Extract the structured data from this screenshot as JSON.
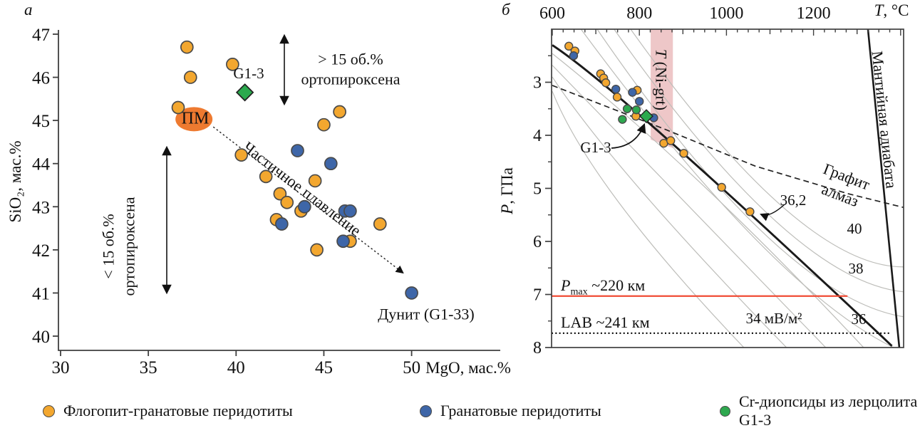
{
  "ui": {
    "panel_a_letter": "a",
    "panel_b_letter": "б",
    "axis_a": {
      "x_label": "MgO, мас.%",
      "y_label": "SiO₂, мас.%"
    },
    "axis_b": {
      "t_it": "T",
      "t_rest": ", °C",
      "p_it": "P",
      "p_rest": ", ГПа"
    },
    "legend": [
      {
        "label": "Флогопит-гранатовые перидотиты",
        "color": "#F3A72F"
      },
      {
        "label": "Гранатовые перидотиты",
        "color": "#3E66A8"
      },
      {
        "label": "Cr-диопсиды из лерцолита G1-3",
        "color": "#2EA84F"
      }
    ]
  },
  "chart_data": [
    {
      "id": "panel_a",
      "type": "scatter",
      "panel_label": "a",
      "xlabel": "MgO, мас.%",
      "ylabel": "SiO₂, мас.%",
      "xlim": [
        30,
        52.5
      ],
      "ylim": [
        40,
        47.15
      ],
      "x_ticks": [
        30,
        35,
        40,
        45,
        50
      ],
      "y_ticks": [
        47,
        46,
        45,
        44,
        43,
        42,
        41,
        40
      ],
      "series": [
        {
          "name": "Флогопит-гранатовые перидотиты",
          "marker": "circle",
          "color": "#F3A72F",
          "points": [
            [
              37.2,
              46.7
            ],
            [
              39.8,
              46.3
            ],
            [
              37.4,
              46.0
            ],
            [
              36.7,
              45.3
            ],
            [
              45.9,
              45.2
            ],
            [
              45.0,
              44.9
            ],
            [
              40.3,
              44.2
            ],
            [
              41.7,
              43.7
            ],
            [
              44.5,
              43.6
            ],
            [
              42.5,
              43.3
            ],
            [
              42.9,
              43.1
            ],
            [
              43.7,
              42.9
            ],
            [
              42.3,
              42.7
            ],
            [
              48.2,
              42.6
            ],
            [
              46.5,
              42.2
            ],
            [
              44.6,
              42.0
            ]
          ]
        },
        {
          "name": "Гранатовые перидотиты",
          "marker": "circle",
          "color": "#3E66A8",
          "points": [
            [
              43.5,
              44.3
            ],
            [
              45.4,
              44.0
            ],
            [
              43.9,
              43.0
            ],
            [
              46.2,
              42.9
            ],
            [
              46.5,
              42.9
            ],
            [
              42.6,
              42.6
            ],
            [
              46.1,
              42.2
            ],
            [
              50.0,
              41.0
            ]
          ]
        },
        {
          "name": "Лерцолит G1-3",
          "marker": "diamond",
          "color": "#2BAA4E",
          "points": [
            [
              40.5,
              45.65
            ]
          ]
        }
      ],
      "annotations": {
        "pm": {
          "text": "ПМ",
          "x": 37.6,
          "y": 45.03,
          "color": "#EE7A30"
        },
        "partial_melting": {
          "text": "Частичное плавление",
          "arrow_from": [
            38.7,
            44.85
          ],
          "arrow_to": [
            49.5,
            41.47
          ]
        },
        "gt15": {
          "line1": "> 15 об.%",
          "line2": "ортопироксена"
        },
        "lt15": {
          "line1": "< 15 об.%",
          "line2": "ортопироксена"
        },
        "g13": "G1-3",
        "dunite": "Дунит (G1-33)"
      }
    },
    {
      "id": "panel_b",
      "type": "scatter",
      "panel_label": "б",
      "xlabel": "T, °C",
      "ylabel": "P, ГПа",
      "xlim": [
        600,
        1407
      ],
      "ylim": [
        2,
        8
      ],
      "y_inverted": true,
      "x_ticks": [
        600,
        800,
        1000,
        1200
      ],
      "x_minor_step": 25,
      "y_ticks": [
        3,
        4,
        5,
        6,
        7,
        8
      ],
      "y_minor": [
        2.5,
        3.5,
        4.5,
        5.5,
        6.5,
        7.5
      ],
      "series": [
        {
          "name": "Флогопит-гранатовые перидотиты",
          "marker": "circle",
          "color": "#F3A72F",
          "points": [
            [
              638,
              2.32
            ],
            [
              652,
              2.41
            ],
            [
              711,
              2.84
            ],
            [
              718,
              2.92
            ],
            [
              723,
              3.01
            ],
            [
              749,
              3.28
            ],
            [
              795,
              3.15
            ],
            [
              792,
              3.64
            ],
            [
              856,
              4.15
            ],
            [
              872,
              4.1
            ],
            [
              902,
              4.34
            ],
            [
              989,
              4.98
            ],
            [
              1054,
              5.44
            ]
          ]
        },
        {
          "name": "Гранатовые перидотиты",
          "marker": "circle",
          "color": "#3E66A8",
          "points": [
            [
              649,
              2.5
            ],
            [
              746,
              3.13
            ],
            [
              784,
              3.19
            ],
            [
              800,
              3.36
            ],
            [
              833,
              3.67
            ]
          ]
        },
        {
          "name": "Cr-диопсиды из лерцолита G1-3",
          "marker": "circle",
          "color": "#2EA84F",
          "points": [
            [
              772,
              3.5
            ],
            [
              793,
              3.52
            ],
            [
              761,
              3.7
            ]
          ]
        },
        {
          "name": "Лерцолит G1-3",
          "marker": "diamond",
          "color": "#2BAA4E",
          "points": [
            [
              816,
              3.64
            ]
          ]
        }
      ],
      "geotherms": {
        "thick": {
          "label": "36,2",
          "points": [
            [
              600,
              2.3
            ],
            [
              872,
              4.13
            ],
            [
              1380,
              7.97
            ]
          ]
        },
        "thin": [
          {
            "label": "",
            "points": [
              [
                600,
                3.17
              ],
              [
                754,
                5.28
              ],
              [
                1040,
                8.0
              ]
            ]
          },
          {
            "label": "34 мВ/м²",
            "points": [
              [
                600,
                2.9
              ],
              [
                805,
                5.05
              ],
              [
                1138,
                8.0
              ]
            ]
          },
          {
            "label": "",
            "points": [
              [
                600,
                2.68
              ],
              [
                854,
                4.83
              ],
              [
                1228,
                8.0
              ]
            ]
          },
          {
            "label": "36",
            "points": [
              [
                600,
                2.46
              ],
              [
                942,
                4.91
              ],
              [
                1315,
                8.0
              ]
            ]
          },
          {
            "label": "",
            "points": [
              [
                666,
                2.0
              ],
              [
                1066,
                5.95
              ],
              [
                1384,
                8.0
              ]
            ]
          },
          {
            "label": "38",
            "points": [
              [
                703,
                2.0
              ],
              [
                1090,
                5.88
              ],
              [
                1407,
                7.42
              ]
            ]
          },
          {
            "label": "",
            "points": [
              [
                742,
                2.0
              ],
              [
                1112,
                5.61
              ],
              [
                1407,
                6.95
              ]
            ]
          },
          {
            "label": "40",
            "points": [
              [
                780,
                2.0
              ],
              [
                1132,
                5.37
              ],
              [
                1407,
                6.48
              ]
            ]
          }
        ]
      },
      "lines": {
        "graphite_diamond": {
          "label_top": "Графит",
          "label_bottom": "алмаз",
          "points": [
            [
              600,
              3.06
            ],
            [
              854,
              3.87
            ],
            [
              1066,
              4.58
            ],
            [
              1279,
              5.1
            ],
            [
              1407,
              5.36
            ]
          ]
        },
        "mantle_adiabat": {
          "label": "Мантийная адиабата",
          "points": [
            [
              1325,
              2.0
            ],
            [
              1397,
              8.0
            ]
          ]
        },
        "p_max": {
          "label_p": "P",
          "label_sub": "max",
          "label_rest": " ~220 км",
          "P": 7.03,
          "T_end": 1278,
          "color": "#F04B34"
        },
        "lab": {
          "label": "LAB ~241 км",
          "P": 7.73,
          "T_end": 1374
        }
      },
      "band": {
        "label_it": "T",
        "label_rest": " (Ni-grt)",
        "T_range": [
          826,
          877
        ],
        "P_top": 2,
        "P_bottom": [
          4.08,
          4.24
        ],
        "color": "rgba(205,90,95,0.34)"
      },
      "g13_annotation": "G1-3"
    }
  ]
}
